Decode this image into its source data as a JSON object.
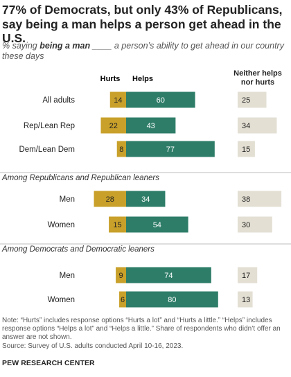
{
  "title": "77% of Democrats, but only 43% of Republicans, say being a man helps a person get ahead in the U.S.",
  "subtitle": {
    "before": "% saying ",
    "emphasis": "being a man",
    "after": " ____ a person’s ability to get ahead in our country these days"
  },
  "legend": {
    "hurts": "Hurts",
    "helps": "Helps",
    "neither": [
      "Neither helps",
      "nor hurts"
    ]
  },
  "colors": {
    "hurts": "#C8A02A",
    "helps": "#2E7D68",
    "neither": "#E3DFD3",
    "divider": "#BDBDBD"
  },
  "chart_data": {
    "type": "bar",
    "stacked": "diverging",
    "series_names": [
      "Hurts",
      "Helps",
      "Neither helps nor hurts"
    ],
    "groups": [
      {
        "heading": "",
        "rows": [
          {
            "label": "All adults",
            "hurts": 14,
            "helps": 60,
            "neither": 25
          },
          {
            "label": "Rep/Lean Rep",
            "hurts": 22,
            "helps": 43,
            "neither": 34
          },
          {
            "label": "Dem/Lean Dem",
            "hurts": 8,
            "helps": 77,
            "neither": 15
          }
        ]
      },
      {
        "heading": "Among Republicans and Republican leaners",
        "rows": [
          {
            "label": "Men",
            "hurts": 28,
            "helps": 34,
            "neither": 38
          },
          {
            "label": "Women",
            "hurts": 15,
            "helps": 54,
            "neither": 30
          }
        ]
      },
      {
        "heading": "Among Democrats and Democratic leaners",
        "rows": [
          {
            "label": "Men",
            "hurts": 9,
            "helps": 74,
            "neither": 17
          },
          {
            "label": "Women",
            "hurts": 6,
            "helps": 80,
            "neither": 13
          }
        ]
      }
    ]
  },
  "notes": {
    "note": "Note: “Hurts” includes response options “Hurts a lot” and “Hurts a little.” “Helps” includes response options “Helps a lot” and “Helps a little.” Share of respondents who didn’t offer an answer are not shown.",
    "source": "Source: Survey of U.S. adults conducted April 10-16, 2023."
  },
  "org": "PEW RESEARCH CENTER"
}
